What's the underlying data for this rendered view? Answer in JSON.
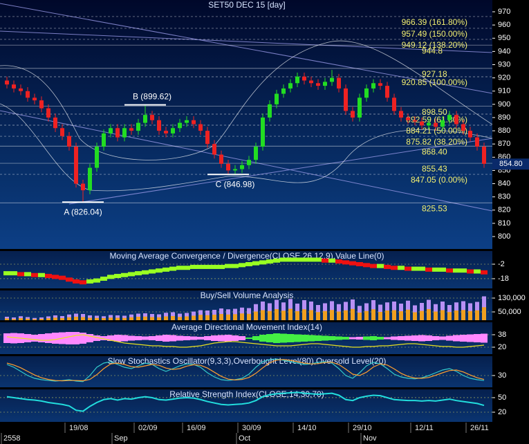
{
  "chart_data": [
    {
      "type": "candlestick",
      "title": "SET50 DEC 15   [day]",
      "up_color": "#22dd22",
      "down_color": "#ee2222",
      "open": [
        918,
        915,
        912,
        910,
        905,
        903,
        897,
        890,
        882,
        876,
        868,
        840,
        835,
        852,
        868,
        878,
        882,
        875,
        882,
        880,
        886,
        892,
        888,
        880,
        878,
        882,
        886,
        888,
        885,
        880,
        870,
        862,
        855,
        850,
        851,
        854,
        858,
        868,
        890,
        900,
        908,
        912,
        916,
        921,
        918,
        916,
        914,
        917,
        920,
        912,
        895,
        890,
        905,
        912,
        916,
        914,
        905,
        895,
        890,
        888,
        887,
        884,
        886,
        883,
        888,
        892,
        885,
        880,
        875,
        868
      ],
      "high": [
        921,
        918,
        915,
        913,
        908,
        906,
        900,
        893,
        885,
        879,
        871,
        843,
        855,
        871,
        881,
        885,
        885,
        885,
        885,
        889,
        899.62,
        895,
        891,
        883,
        885,
        889,
        891,
        891,
        888,
        883,
        873,
        865,
        858,
        854,
        857,
        861,
        871,
        893,
        903,
        911,
        915,
        919,
        924,
        924,
        921,
        919,
        920,
        926,
        923,
        915,
        898,
        908,
        915,
        919,
        919,
        917,
        908,
        898,
        893,
        891,
        890,
        889,
        889,
        891,
        895,
        895,
        888,
        883,
        878,
        871
      ],
      "low": [
        912,
        909,
        907,
        902,
        900,
        894,
        887,
        879,
        873,
        865,
        837,
        826.04,
        832,
        849,
        865,
        875,
        872,
        872,
        877,
        877,
        883,
        885,
        877,
        875,
        875,
        879,
        883,
        882,
        877,
        867,
        859,
        852,
        846.98,
        847,
        848,
        851,
        855,
        865,
        887,
        897,
        905,
        909,
        913,
        915,
        913,
        911,
        911,
        914,
        909,
        892,
        887,
        887,
        902,
        909,
        911,
        902,
        892,
        887,
        885,
        884,
        881,
        881,
        880,
        880,
        885,
        882,
        877,
        872,
        865,
        852
      ],
      "close": [
        915,
        912,
        910,
        905,
        903,
        897,
        890,
        882,
        876,
        868,
        840,
        835,
        852,
        868,
        878,
        882,
        875,
        882,
        880,
        886,
        892,
        888,
        880,
        878,
        882,
        886,
        888,
        885,
        880,
        870,
        862,
        855,
        850,
        851,
        854,
        858,
        868,
        890,
        900,
        908,
        912,
        916,
        921,
        918,
        916,
        914,
        917,
        920,
        912,
        895,
        890,
        905,
        912,
        916,
        914,
        905,
        895,
        890,
        888,
        887,
        884,
        886,
        883,
        888,
        892,
        885,
        880,
        875,
        868,
        855
      ],
      "ylim": [
        790.6,
        978.9
      ],
      "yticks": [
        970,
        960,
        950,
        940,
        930,
        920,
        910,
        900,
        890,
        880,
        870,
        860,
        850,
        840,
        830,
        820,
        810,
        800
      ],
      "last_price": {
        "value": 854.8,
        "label": "854.80"
      },
      "annotations": [
        {
          "value": 966.39,
          "label": "966.39 (161.80%)"
        },
        {
          "value": 957.49,
          "label": "957.49 (150.00%)"
        },
        {
          "value": 949.12,
          "label": "949.12 (138.20%)"
        },
        {
          "value": 944.8,
          "label": "944.8"
        },
        {
          "value": 927.18,
          "label": "927.18"
        },
        {
          "value": 920.85,
          "label": "920.85 (100.00%)"
        },
        {
          "value": 898.5,
          "label": "898.50"
        },
        {
          "value": 892.59,
          "label": "892.59 (61.80%)"
        },
        {
          "value": 884.21,
          "label": "884.21 (50.00%)"
        },
        {
          "value": 875.82,
          "label": "875.82 (38.20%)"
        },
        {
          "value": 868.4,
          "label": "868.40"
        },
        {
          "value": 855.43,
          "label": "855.43"
        },
        {
          "value": 847.05,
          "label": "847.05 (0.00%)"
        },
        {
          "value": 825.53,
          "label": "825.53"
        }
      ],
      "points": [
        {
          "x": 11,
          "value": 826.04,
          "label": "A (826.04)"
        },
        {
          "x": 20,
          "value": 899.62,
          "label": "B (899.62)"
        },
        {
          "x": 32,
          "value": 846.98,
          "label": "C (846.98)"
        }
      ],
      "xticks": [
        {
          "value": 9,
          "label": "19/08"
        },
        {
          "value": 19,
          "label": "02/09"
        },
        {
          "value": 26,
          "label": "16/09"
        },
        {
          "value": 34,
          "label": "30/09"
        },
        {
          "value": 42,
          "label": "14/10"
        },
        {
          "value": 50,
          "label": "29/10"
        },
        {
          "value": 59,
          "label": "12/11"
        },
        {
          "value": 67,
          "label": "26/11"
        }
      ],
      "xticks_months": [
        {
          "value": 0,
          "label": "2558"
        },
        {
          "value": 16,
          "label": "Sep"
        },
        {
          "value": 34,
          "label": "Oct"
        },
        {
          "value": 52,
          "label": "Nov"
        }
      ]
    },
    {
      "type": "macd",
      "title": "Moving Average Convergence / Divergence(CLOSE,26,12,9),Value Line(0)",
      "up_color": "#99ff22",
      "down_color": "#ee1111",
      "values": [
        -12,
        -12,
        -13,
        -13,
        -14,
        -14,
        -15,
        -16,
        -17,
        -19,
        -21,
        -22,
        -21,
        -20,
        -18,
        -16,
        -15,
        -14,
        -13,
        -12,
        -11,
        -10,
        -9,
        -8,
        -7,
        -6,
        -6,
        -5,
        -5,
        -5,
        -5,
        -5,
        -4,
        -4,
        -3,
        -2,
        -1,
        0,
        1,
        2,
        3,
        3,
        3,
        3,
        3,
        3,
        2,
        2,
        1,
        0,
        -1,
        -2,
        -3,
        -4,
        -4,
        -5,
        -6,
        -6,
        -7,
        -7,
        -7,
        -8,
        -8,
        -8,
        -9,
        -9,
        -9,
        -10,
        -10,
        -11
      ],
      "ylim": [
        -28.7,
        12.5
      ],
      "yticks": [
        -2,
        -18
      ]
    },
    {
      "type": "volume",
      "title": "Buy/Sell Volume Analysis",
      "series": [
        {
          "color": "#b890f4",
          "values": [
            22000,
            18000,
            25000,
            20000,
            15000,
            18000,
            24000,
            30000,
            26000,
            35000,
            40000,
            38000,
            30000,
            28000,
            25000,
            32000,
            30000,
            28000,
            35000,
            40000,
            42000,
            38000,
            36000,
            45000,
            48000,
            40000,
            44000,
            52000,
            60000,
            58000,
            62000,
            70000,
            65000,
            68000,
            75000,
            72000,
            95000,
            110000,
            100000,
            120000,
            105000,
            125000,
            98000,
            118000,
            110000,
            90000,
            100000,
            112000,
            95000,
            108000,
            122000,
            85000,
            100000,
            118000,
            92000,
            105000,
            110000,
            98000,
            115000,
            88000,
            102000,
            120000,
            95000,
            110000,
            90000,
            105000,
            112000,
            100000,
            108000,
            140000
          ]
        },
        {
          "color": "#f0a020",
          "values": [
            12000,
            9000,
            14000,
            11000,
            8000,
            10000,
            13000,
            17000,
            14000,
            19000,
            22000,
            20000,
            16000,
            15000,
            14000,
            17000,
            16000,
            15000,
            19000,
            22000,
            23000,
            20000,
            19000,
            24000,
            26000,
            21000,
            24000,
            28000,
            33000,
            31000,
            34000,
            38000,
            35000,
            37000,
            41000,
            39000,
            52000,
            60000,
            55000,
            66000,
            57000,
            68000,
            54000,
            65000,
            60000,
            49000,
            55000,
            61000,
            52000,
            59000,
            67000,
            46000,
            55000,
            65000,
            50000,
            58000,
            60000,
            54000,
            63000,
            48000,
            56000,
            66000,
            52000,
            60000,
            49000,
            58000,
            61000,
            55000,
            59000,
            77000
          ]
        }
      ],
      "ylim": [
        2000,
        174000
      ],
      "yticks": [
        {
          "value": 130000,
          "label": "130,000"
        },
        {
          "value": 50000,
          "label": "50,000"
        }
      ]
    },
    {
      "type": "adx",
      "title": "Average Directional Movement Index(14)",
      "line_color": "#e8e020",
      "up_color": "#44ee44",
      "down_color": "#ff88ff",
      "adx": [
        35,
        34,
        33,
        32,
        31,
        30,
        30,
        31,
        33,
        35,
        37,
        38,
        36,
        34,
        32,
        30,
        28,
        26,
        25,
        24,
        23,
        22,
        22,
        21,
        21,
        20,
        20,
        21,
        22,
        24,
        26,
        27,
        28,
        28,
        27,
        26,
        25,
        24,
        23,
        22,
        22,
        22,
        23,
        24,
        25,
        25,
        24,
        23,
        22,
        21,
        20,
        20,
        21,
        21,
        22,
        22,
        23,
        24,
        25,
        25,
        24,
        23,
        22,
        21,
        21,
        20,
        20,
        21,
        22,
        23
      ],
      "di_diff": [
        -14,
        -15,
        -14,
        -12,
        -10,
        -12,
        -14,
        -16,
        -17,
        -18,
        -18,
        -16,
        -12,
        -8,
        -6,
        -8,
        -10,
        -9,
        -7,
        -6,
        -5,
        -6,
        -8,
        -10,
        -9,
        -7,
        -6,
        -5,
        -4,
        -6,
        -8,
        -9,
        -10,
        -8,
        -6,
        2,
        6,
        10,
        12,
        14,
        13,
        12,
        11,
        10,
        9,
        8,
        7,
        6,
        5,
        4,
        -3,
        -4,
        5,
        6,
        4,
        -3,
        -5,
        -6,
        -7,
        -8,
        -9,
        -8,
        -6,
        -5,
        -7,
        -9,
        -10,
        -11,
        -12,
        -13
      ],
      "ylim": [
        10,
        56
      ],
      "yticks": [
        38,
        20
      ]
    },
    {
      "type": "line",
      "title": "Slow Stochastics Oscillator(9,3,3),Overbought Level(80),Oversold Level(20)",
      "series": [
        {
          "color": "#33cccc",
          "values": [
            70,
            60,
            45,
            30,
            20,
            15,
            12,
            10,
            12,
            15,
            10,
            8,
            30,
            60,
            75,
            80,
            70,
            60,
            55,
            65,
            75,
            70,
            55,
            45,
            55,
            65,
            72,
            70,
            60,
            40,
            25,
            15,
            12,
            15,
            20,
            35,
            60,
            80,
            88,
            90,
            85,
            80,
            75,
            70,
            72,
            78,
            80,
            75,
            55,
            30,
            20,
            40,
            65,
            78,
            72,
            55,
            35,
            25,
            20,
            18,
            22,
            30,
            40,
            50,
            55,
            45,
            30,
            20,
            15,
            12
          ]
        },
        {
          "color": "#ffa030",
          "values": [
            75,
            68,
            58,
            45,
            32,
            22,
            16,
            12,
            11,
            12,
            12,
            11,
            16,
            33,
            55,
            72,
            75,
            70,
            62,
            60,
            65,
            70,
            67,
            57,
            52,
            55,
            64,
            69,
            67,
            57,
            42,
            27,
            17,
            14,
            16,
            23,
            38,
            58,
            76,
            86,
            88,
            85,
            80,
            75,
            72,
            73,
            77,
            78,
            70,
            53,
            35,
            30,
            42,
            61,
            72,
            68,
            54,
            38,
            27,
            21,
            20,
            23,
            31,
            40,
            48,
            50,
            43,
            32,
            22,
            16
          ]
        }
      ],
      "ylim": [
        -12.5,
        100
      ],
      "yticks": [
        30
      ]
    },
    {
      "type": "line",
      "title": "Relative Strength Index(CLOSE,14,30,70)",
      "series": [
        {
          "color": "#22dddd",
          "values": [
            52,
            50,
            48,
            46,
            45,
            43,
            40,
            38,
            36,
            33,
            24,
            22,
            32,
            40,
            46,
            48,
            45,
            48,
            47,
            50,
            52,
            50,
            46,
            45,
            47,
            49,
            50,
            49,
            46,
            42,
            39,
            36,
            35,
            36,
            37,
            39,
            44,
            52,
            56,
            58,
            59,
            60,
            61,
            59,
            58,
            57,
            58,
            59,
            55,
            46,
            44,
            50,
            53,
            55,
            54,
            50,
            46,
            45,
            44,
            44,
            43,
            44,
            43,
            45,
            47,
            44,
            42,
            40,
            38,
            34
          ]
        }
      ],
      "ylim": [
        0,
        67.1
      ],
      "yticks": [
        50,
        20
      ]
    }
  ]
}
